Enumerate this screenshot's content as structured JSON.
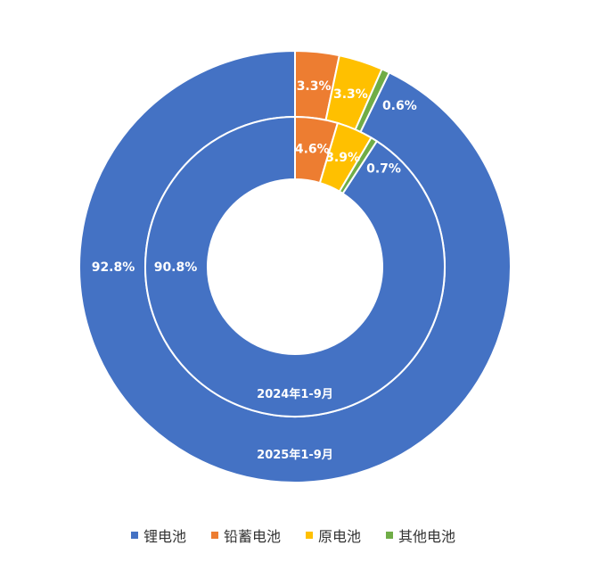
{
  "chart_data": {
    "type": "donut",
    "categories": [
      "锂电池",
      "铅蓄电池",
      "原电池",
      "其他电池"
    ],
    "colors": [
      "#4472C4",
      "#ED7D31",
      "#FFC000",
      "#70AD47"
    ],
    "legend_position": "bottom",
    "series": [
      {
        "name": "2025年1-9月",
        "ring": "outer",
        "values": [
          92.8,
          3.3,
          3.3,
          0.6
        ],
        "labels": [
          "92.8%",
          "3.3%",
          "3.3%",
          "0.6%"
        ]
      },
      {
        "name": "2024年1-9月",
        "ring": "inner",
        "values": [
          90.8,
          4.6,
          3.9,
          0.7
        ],
        "labels": [
          "90.8%",
          "4.6%",
          "3.9%",
          "0.7%"
        ]
      }
    ]
  }
}
